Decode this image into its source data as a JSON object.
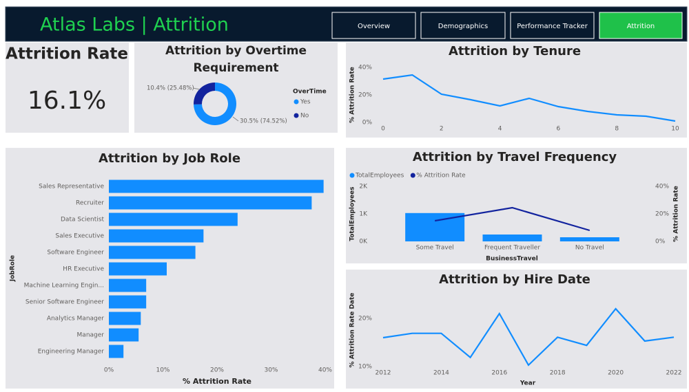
{
  "header": {
    "title": "Atlas Labs | Attrition"
  },
  "nav": {
    "tabs": [
      "Overview",
      "Demographics",
      "Performance Tracker",
      "Attrition"
    ],
    "active": 3
  },
  "kpi": {
    "title": "Attrition Rate",
    "value": "16.1%"
  },
  "chart_data": [
    {
      "type": "donut",
      "title": "Attrition by Overtime Requirement",
      "legend_title": "OverTime",
      "categories": [
        "Yes",
        "No"
      ],
      "values": [
        74.52,
        25.48
      ],
      "value_labels": [
        "30.5% (74.52%)",
        "10.4% (25.48%)"
      ],
      "colors": [
        "#118dff",
        "#12239e"
      ]
    },
    {
      "type": "line",
      "title": "Attrition by Tenure",
      "y_label": "% Attrition Rate",
      "x": [
        0,
        1,
        2,
        3,
        4,
        5,
        6,
        7,
        8,
        9,
        10
      ],
      "values": [
        31.5,
        34.5,
        20.5,
        16.5,
        12,
        17.5,
        11.5,
        8,
        5.5,
        4.5,
        1
      ],
      "color": "#118dff",
      "xlim": [
        0,
        10
      ],
      "xticks": [
        0,
        2,
        4,
        6,
        8,
        10
      ],
      "ylim": [
        0,
        45
      ],
      "yticks": [
        {
          "value": 0,
          "label": "0%"
        },
        {
          "value": 20,
          "label": "20%"
        },
        {
          "value": 40,
          "label": "40%"
        }
      ]
    },
    {
      "type": "hbar",
      "title": "Attrition by Job Role",
      "x_label": "% Attrition Rate",
      "y_label": "JobRole",
      "categories": [
        "Sales Representative",
        "Recruiter",
        "Data Scientist",
        "Sales Executive",
        "Software Engineer",
        "HR Executive",
        "Machine Learning Engin...",
        "Senior Software Engineer",
        "Analytics Manager",
        "Manager",
        "Engineering Manager"
      ],
      "values": [
        39.7,
        37.5,
        23.8,
        17.5,
        16,
        10.7,
        6.9,
        6.9,
        5.9,
        5.5,
        2.7
      ],
      "color": "#118dff",
      "xlim": [
        0,
        40
      ],
      "xticks": [
        {
          "value": 0,
          "label": "0%"
        },
        {
          "value": 10,
          "label": "10%"
        },
        {
          "value": 20,
          "label": "20%"
        },
        {
          "value": 30,
          "label": "30%"
        },
        {
          "value": 40,
          "label": "40%"
        }
      ]
    },
    {
      "type": "combo",
      "title": "Attrition by Travel Frequency",
      "x_label": "BusinessTravel",
      "y_label": "TotalEmployees",
      "y2_label": "% Attrition Rate",
      "categories": [
        "Some Travel",
        "Frequent Traveller",
        "No Travel"
      ],
      "series": [
        {
          "name": "TotalEmployees",
          "type": "bar",
          "color": "#118dff",
          "values": [
            1030,
            250,
            150
          ]
        },
        {
          "name": "% Attrition Rate",
          "type": "line",
          "axis": "y2",
          "color": "#12239e",
          "values": [
            15,
            24.5,
            8
          ]
        }
      ],
      "ylim": [
        0,
        2000
      ],
      "yticks": [
        {
          "value": 0,
          "label": "0K"
        },
        {
          "value": 1000,
          "label": "1K"
        },
        {
          "value": 2000,
          "label": "2K"
        }
      ],
      "y2lim": [
        0,
        40
      ],
      "y2ticks": [
        {
          "value": 0,
          "label": "0%"
        },
        {
          "value": 20,
          "label": "20%"
        },
        {
          "value": 40,
          "label": "40%"
        }
      ]
    },
    {
      "type": "line",
      "title": "Attrition by Hire Date",
      "x_label": "Year",
      "y_label": "% Attrition Rate Date",
      "x": [
        2012,
        2013,
        2014,
        2015,
        2016,
        2017,
        2018,
        2019,
        2020,
        2021,
        2022
      ],
      "values": [
        16,
        16.9,
        16.9,
        11.9,
        21,
        10.3,
        16.1,
        14.4,
        22,
        15.3,
        16.1
      ],
      "color": "#118dff",
      "xlim": [
        2012,
        2022
      ],
      "xticks": [
        2012,
        2014,
        2016,
        2018,
        2020,
        2022
      ],
      "ylim": [
        10,
        23
      ],
      "yticks": [
        {
          "value": 10,
          "label": "10%"
        },
        {
          "value": 20,
          "label": "20%"
        }
      ]
    }
  ]
}
